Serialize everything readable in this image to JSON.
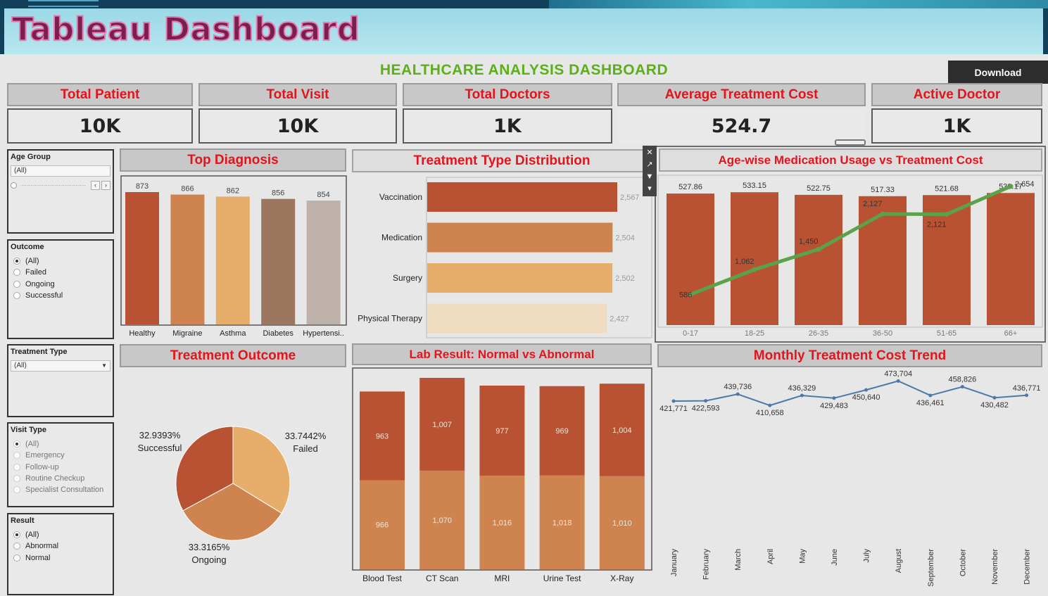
{
  "banner": {
    "title": "Tableau Dashboard"
  },
  "dashboard": {
    "title": "HEALTHCARE ANALYSIS DASHBOARD",
    "download_label": "Download"
  },
  "kpis": [
    {
      "label": "Total Patient",
      "value": "10K"
    },
    {
      "label": "Total Visit",
      "value": "10K"
    },
    {
      "label": "Total Doctors",
      "value": "1K"
    },
    {
      "label": "Average Treatment Cost",
      "value": "524.7"
    },
    {
      "label": "Active Doctor",
      "value": "1K"
    }
  ],
  "filters": {
    "age_group": {
      "title": "Age Group",
      "value": "(All)"
    },
    "outcome": {
      "title": "Outcome",
      "options": [
        "(All)",
        "Failed",
        "Ongoing",
        "Successful"
      ],
      "selected": "(All)"
    },
    "treatment_type": {
      "title": "Treatment Type",
      "value": "(All)"
    },
    "visit_type": {
      "title": "Visit Type",
      "options": [
        "(All)",
        "Emergency",
        "Follow-up",
        "Routine Checkup",
        "Specialist Consultation"
      ],
      "selected": "(All)"
    },
    "result": {
      "title": "Result",
      "options": [
        "(All)",
        "Abnormal",
        "Normal"
      ],
      "selected": "(All)"
    }
  },
  "chart_data": [
    {
      "id": "top-diagnosis",
      "type": "bar",
      "title": "Top Diagnosis",
      "categories": [
        "Healthy",
        "Migraine",
        "Asthma",
        "Diabetes",
        "Hypertensi.."
      ],
      "values": [
        873,
        866,
        862,
        856,
        854
      ],
      "colors": [
        "#b85232",
        "#cf8450",
        "#e7ad6a",
        "#9c765e",
        "#bdb1aa"
      ],
      "ylim": [
        0,
        873
      ]
    },
    {
      "id": "treatment-type",
      "type": "bar",
      "orientation": "horizontal",
      "title": "Treatment Type Distribution",
      "categories": [
        "Vaccination",
        "Medication",
        "Surgery",
        "Physical Therapy"
      ],
      "values": [
        2567,
        2504,
        2502,
        2427
      ],
      "labels": [
        "2,567",
        "2,504",
        "2,502",
        "2,427"
      ],
      "colors": [
        "#b85232",
        "#cf8450",
        "#e7ad6a",
        "#efdcc0"
      ],
      "xlim": [
        0,
        2567
      ]
    },
    {
      "id": "age-medication",
      "type": "bar",
      "title": "Age-wise Medication Usage vs Treatment Cost",
      "categories": [
        "0-17",
        "18-25",
        "26-35",
        "36-50",
        "51-65",
        "66+"
      ],
      "series": [
        {
          "type": "bar",
          "values": [
            527.86,
            533.15,
            522.75,
            517.33,
            521.68,
            530.17
          ],
          "labels": [
            "527.86",
            "533.15",
            "522.75",
            "517.33",
            "521.68",
            "530.17"
          ],
          "color": "#b85232"
        },
        {
          "type": "line",
          "values": [
            586,
            1062,
            1450,
            2127,
            2121,
            2654
          ],
          "labels": [
            "586",
            "1,062",
            "1,450",
            "2,127",
            "2,121",
            "2,654"
          ],
          "color": "#5aa34a"
        }
      ]
    },
    {
      "id": "treatment-outcome",
      "type": "pie",
      "title": "Treatment Outcome",
      "slices": [
        {
          "name": "Failed",
          "pct": "33.7442%",
          "value": 33.7442,
          "color": "#e7ad6a"
        },
        {
          "name": "Ongoing",
          "pct": "33.3165%",
          "value": 33.3165,
          "color": "#cf8450"
        },
        {
          "name": "Successful",
          "pct": "32.9393%",
          "value": 32.9393,
          "color": "#b85232"
        }
      ]
    },
    {
      "id": "lab-result",
      "type": "bar",
      "stacked": true,
      "title": "Lab Result: Normal vs Abnormal",
      "categories": [
        "Blood Test",
        "CT Scan",
        "MRI",
        "Urine Test",
        "X-Ray"
      ],
      "series": [
        {
          "values": [
            966,
            1070,
            1016,
            1018,
            1010
          ],
          "labels": [
            "966",
            "1,070",
            "1,016",
            "1,018",
            "1,010"
          ],
          "color": "#cf8450"
        },
        {
          "values": [
            963,
            1007,
            977,
            969,
            1004
          ],
          "labels": [
            "963",
            "1,007",
            "977",
            "969",
            "1,004"
          ],
          "color": "#b85232"
        }
      ],
      "ylim": [
        0,
        2077
      ]
    },
    {
      "id": "monthly-cost",
      "type": "line",
      "title": "Monthly Treatment Cost Trend",
      "categories": [
        "January",
        "February",
        "March",
        "April",
        "May",
        "June",
        "July",
        "August",
        "September",
        "October",
        "November",
        "December"
      ],
      "values": [
        421771,
        422593,
        439736,
        410658,
        436329,
        429483,
        450640,
        473704,
        436461,
        458826,
        430482,
        436771
      ],
      "labels": [
        "421,771",
        "422,593",
        "439,736",
        "410,658",
        "436,329",
        "429,483",
        "450,640",
        "473,704",
        "436,461",
        "458,826",
        "430,482",
        "436,771"
      ],
      "color": "#4e79a7"
    }
  ]
}
